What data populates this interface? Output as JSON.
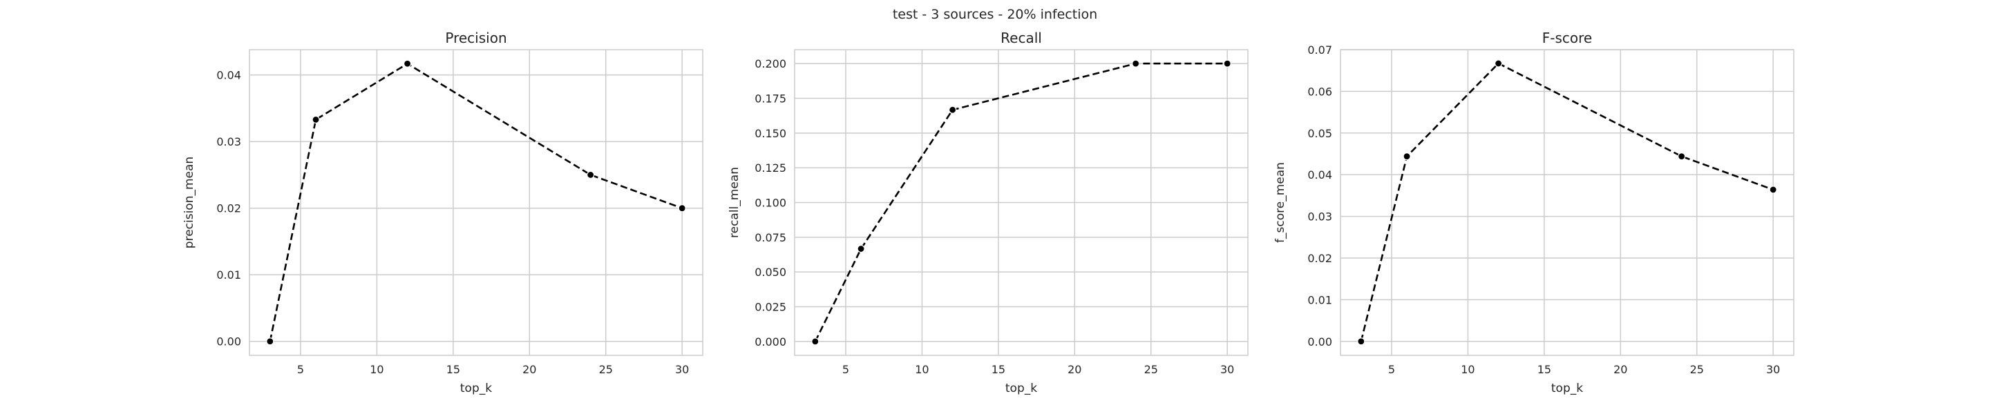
{
  "figure": {
    "suptitle": "test - 3 sources - 20% infection"
  },
  "chart_data": [
    {
      "type": "line",
      "title": "Precision",
      "xlabel": "top_k",
      "ylabel": "precision_mean",
      "x": [
        3,
        6,
        12,
        24,
        30
      ],
      "series": [
        {
          "values": [
            0.0,
            0.0333,
            0.0417,
            0.025,
            0.02
          ],
          "color": "#000000",
          "linestyle": "dashed",
          "marker": "circle"
        }
      ],
      "xlim": [
        1.65,
        31.35
      ],
      "ylim": [
        -0.0021,
        0.0438
      ],
      "xticks": [
        5,
        10,
        15,
        20,
        25,
        30
      ],
      "yticks": [
        0.0,
        0.01,
        0.02,
        0.03,
        0.04
      ],
      "ytick_labels": [
        "0.00",
        "0.01",
        "0.02",
        "0.03",
        "0.04"
      ],
      "grid": true
    },
    {
      "type": "line",
      "title": "Recall",
      "xlabel": "top_k",
      "ylabel": "recall_mean",
      "x": [
        3,
        6,
        12,
        24,
        30
      ],
      "series": [
        {
          "values": [
            0.0,
            0.0667,
            0.1667,
            0.2,
            0.2
          ],
          "color": "#000000",
          "linestyle": "dashed",
          "marker": "circle"
        }
      ],
      "xlim": [
        1.65,
        31.35
      ],
      "ylim": [
        -0.01,
        0.21
      ],
      "xticks": [
        5,
        10,
        15,
        20,
        25,
        30
      ],
      "yticks": [
        0.0,
        0.025,
        0.05,
        0.075,
        0.1,
        0.125,
        0.15,
        0.175,
        0.2
      ],
      "ytick_labels": [
        "0.000",
        "0.025",
        "0.050",
        "0.075",
        "0.100",
        "0.125",
        "0.150",
        "0.175",
        "0.200"
      ],
      "grid": true
    },
    {
      "type": "line",
      "title": "F-score",
      "xlabel": "top_k",
      "ylabel": "f_score_mean",
      "x": [
        3,
        6,
        12,
        24,
        30
      ],
      "series": [
        {
          "values": [
            0.0,
            0.0444,
            0.0667,
            0.0444,
            0.0364
          ],
          "color": "#000000",
          "linestyle": "dashed",
          "marker": "circle"
        }
      ],
      "xlim": [
        1.65,
        31.35
      ],
      "ylim": [
        -0.00335,
        0.07
      ],
      "xticks": [
        5,
        10,
        15,
        20,
        25,
        30
      ],
      "yticks": [
        0.0,
        0.01,
        0.02,
        0.03,
        0.04,
        0.05,
        0.06,
        0.07
      ],
      "ytick_labels": [
        "0.00",
        "0.01",
        "0.02",
        "0.03",
        "0.04",
        "0.05",
        "0.06",
        "0.07"
      ],
      "grid": true
    }
  ]
}
